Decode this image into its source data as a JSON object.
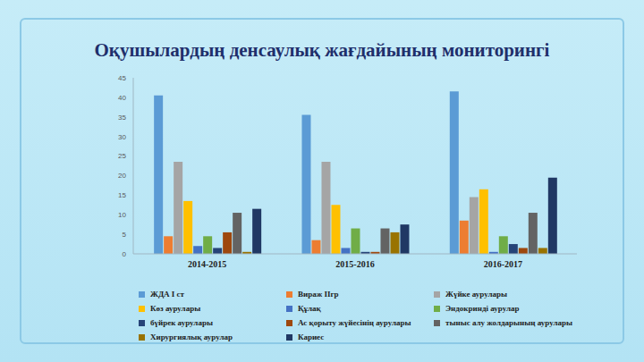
{
  "chart_data": {
    "type": "bar",
    "title": "Оқушылардың денсаулық жағдайының мониторингі",
    "categories": [
      "2014-2015",
      "2015-2016",
      "2016-2017"
    ],
    "series": [
      {
        "name": "ЖДА І ст",
        "color": "#5b9bd5",
        "values": [
          40.5,
          35.5,
          41.5
        ]
      },
      {
        "name": "Вираж ІІгр",
        "color": "#ed7d31",
        "values": [
          4.5,
          3.5,
          8.5
        ]
      },
      {
        "name": "Жүйке аурулары",
        "color": "#a5a5a5",
        "values": [
          23.5,
          23.5,
          14.5
        ]
      },
      {
        "name": "Көз аурулары",
        "color": "#ffc000",
        "values": [
          13.5,
          12.5,
          16.5
        ]
      },
      {
        "name": "Құлақ",
        "color": "#4472c4",
        "values": [
          2,
          1.5,
          0.5
        ]
      },
      {
        "name": "Эндокринді аурулар",
        "color": "#70ad47",
        "values": [
          4.5,
          6.5,
          4.5
        ]
      },
      {
        "name": "бүйрек аурулары",
        "color": "#264478",
        "values": [
          1.5,
          0.5,
          2.5
        ]
      },
      {
        "name": "Ас қорыту жүйесінің аурулары",
        "color": "#9e480e",
        "values": [
          5.5,
          0.5,
          1.5
        ]
      },
      {
        "name": "тыныс алу жолдарының аурулары",
        "color": "#636363",
        "values": [
          10.5,
          6.5,
          10.5
        ]
      },
      {
        "name": "Хирургиялық аурулар",
        "color": "#997300",
        "values": [
          0.5,
          5.5,
          1.5
        ]
      },
      {
        "name": "Кариес",
        "color": "#203864",
        "values": [
          11.5,
          7.5,
          19.5
        ]
      }
    ],
    "ylim": [
      0,
      45
    ],
    "yticks": [
      0,
      5,
      10,
      15,
      20,
      25,
      30,
      35,
      40,
      45
    ],
    "grid": false,
    "legend": "bottom"
  }
}
